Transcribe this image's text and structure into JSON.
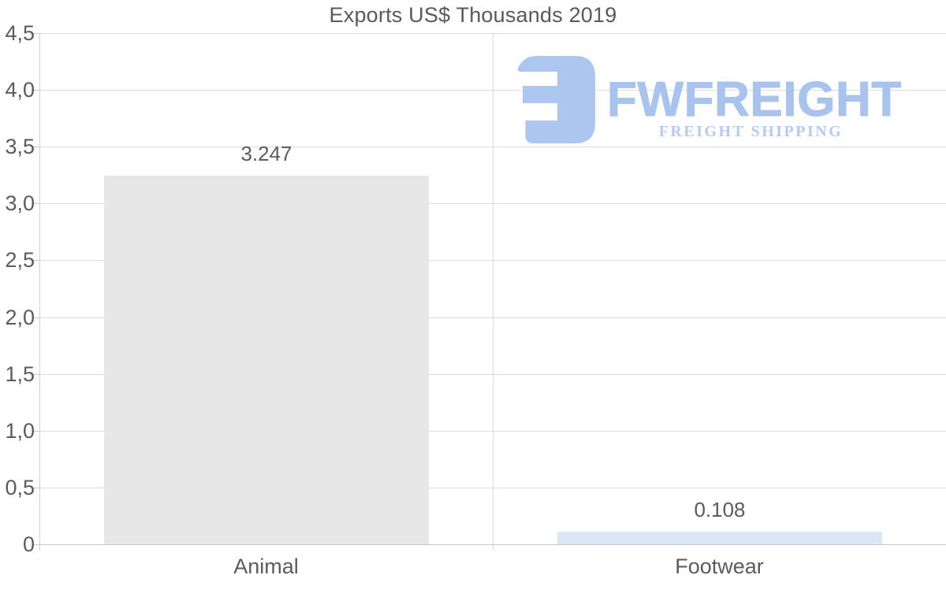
{
  "chart_data": {
    "type": "bar",
    "title": "Exports US$ Thousands 2019",
    "categories": [
      "Animal",
      "Footwear"
    ],
    "values": [
      3.247,
      0.108
    ],
    "value_labels": [
      "3.247",
      "0.108"
    ],
    "bar_colors": [
      "#e7e7e7",
      "#d9e7f8"
    ],
    "ylim": [
      0,
      4.5
    ],
    "y_tick_step": 0.5,
    "y_tick_labels_bottom_to_top": [
      "0",
      "0,5",
      "1,0",
      "1,5",
      "2,0",
      "2,5",
      "3,0",
      "3,5",
      "4,0",
      "4,5"
    ],
    "grid": true,
    "legend_position": "none",
    "xlabel": "",
    "ylabel": ""
  },
  "watermark": {
    "brand": "FWFREIGHT",
    "tagline": "FREIGHT SHIPPING",
    "brand_color": "#a4c0ee",
    "tagline_color": "#b2c9f1",
    "icon": "fwfreight-logo-mark",
    "icon_color": "#a9c3f0"
  },
  "colors": {
    "background": "#ffffff",
    "text": "#5b5b5b",
    "title_text": "#595959",
    "gridline": "#dcdcdc",
    "axis_line": "#c9c9c9",
    "bar_animal": "#e7e7e7",
    "bar_footwear": "#d9e7f8"
  }
}
